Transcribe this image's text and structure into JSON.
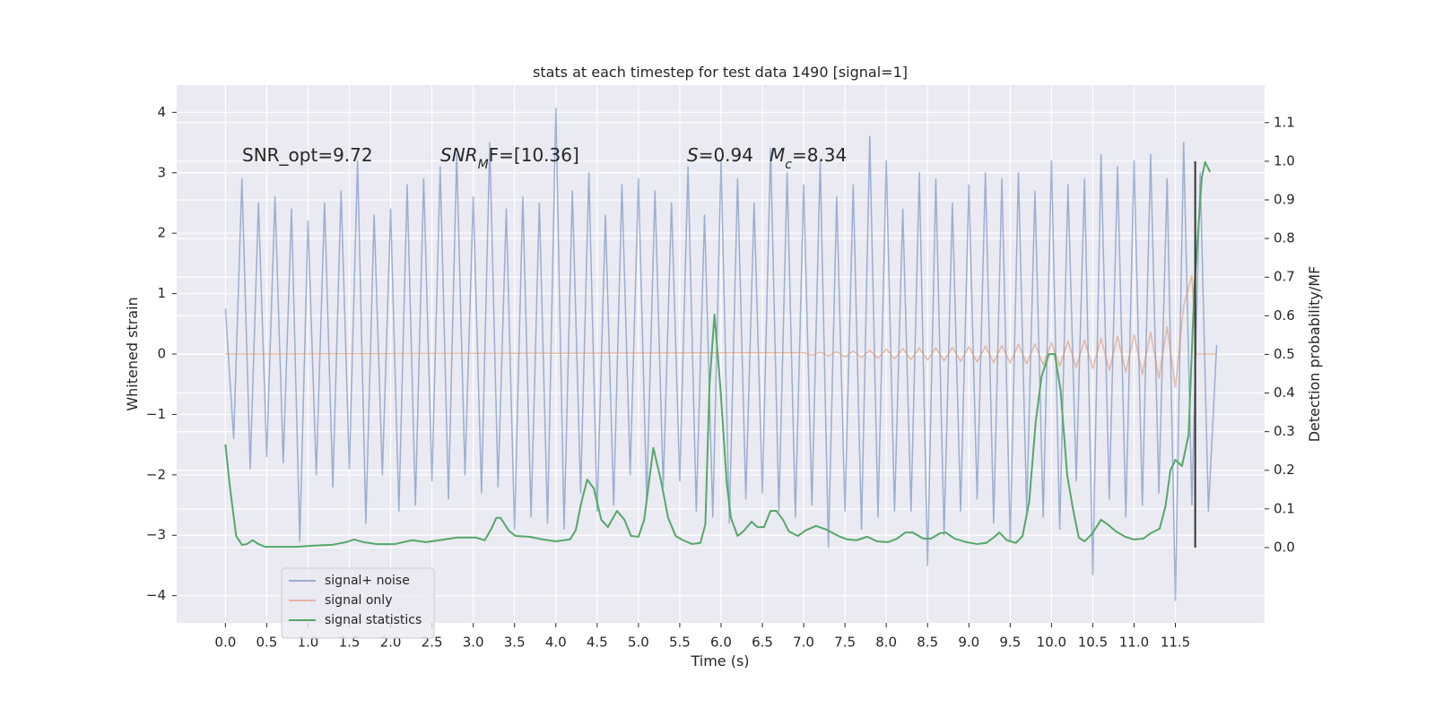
{
  "chart_data": {
    "type": "line",
    "title": "stats at each timestep for test data 1490 [signal=1]",
    "x_label": "Time (s)",
    "y_label": "Whitened strain",
    "y2_label": "Detection probability/MF",
    "xlim": [
      -0.59,
      12.58
    ],
    "ylim": [
      -4.45,
      4.45
    ],
    "y2lim": [
      -0.195,
      1.197
    ],
    "xticks": [
      {
        "value": 0,
        "label": "0.0"
      },
      0.5,
      {
        "value": 1,
        "label": "1.0"
      },
      1.5,
      {
        "value": 2,
        "label": "2.0"
      },
      2.5,
      {
        "value": 3,
        "label": "3.0"
      },
      3.5,
      {
        "value": 4,
        "label": "4.0"
      },
      4.5,
      {
        "value": 5,
        "label": "5.0"
      },
      5.5,
      {
        "value": 6,
        "label": "6.0"
      },
      6.5,
      {
        "value": 7,
        "label": "7.0"
      },
      7.5,
      {
        "value": 8,
        "label": "8.0"
      },
      8.5,
      {
        "value": 9,
        "label": "9.0"
      },
      9.5,
      {
        "value": 10,
        "label": "10.0"
      },
      10.5,
      {
        "value": 11,
        "label": "11.0"
      },
      11.5
    ],
    "yticks": [
      {
        "value": -4,
        "label": "−4"
      },
      {
        "value": -3,
        "label": "−3"
      },
      {
        "value": -2,
        "label": "−2"
      },
      {
        "value": -1,
        "label": "−1"
      },
      0,
      1,
      2,
      3,
      4
    ],
    "y2ticks": [
      {
        "value": 0,
        "label": "0.0"
      },
      0.1,
      0.2,
      0.3,
      0.4,
      0.5,
      0.6,
      0.7,
      0.8,
      0.9,
      {
        "value": 1,
        "label": "1.0"
      },
      1.1
    ],
    "grid": true,
    "legend": "lower left",
    "annotations": [
      {
        "parts": [
          {
            "text": "SNR_opt=9.72"
          }
        ]
      },
      {
        "parts": [
          {
            "text": "SNR",
            "style": "italic"
          },
          {
            "text": "M",
            "style": "italic",
            "sub": true
          },
          {
            "text": "F=[10.36]"
          }
        ]
      },
      {
        "parts": [
          {
            "text": "S",
            "style": "italic"
          },
          {
            "text": "=0.94"
          }
        ]
      },
      {
        "parts": [
          {
            "text": "M",
            "style": "italic"
          },
          {
            "text": "c",
            "style": "italic",
            "sub": true
          },
          {
            "text": "=8.34"
          }
        ]
      }
    ],
    "vline": {
      "x": 11.74,
      "y2": [
        0,
        1.0
      ],
      "color": "#333333"
    },
    "series": [
      {
        "name": "signal+ noise",
        "color": "#4c72b0",
        "opacity": 0.5,
        "x": [
          0.0,
          0.1,
          0.2,
          0.3,
          0.4,
          0.5,
          0.6,
          0.7,
          0.8,
          0.9,
          1.0,
          1.1,
          1.2,
          1.3,
          1.4,
          1.5,
          1.6,
          1.7,
          1.8,
          1.9,
          2.0,
          2.1,
          2.2,
          2.3,
          2.4,
          2.5,
          2.6,
          2.7,
          2.8,
          2.9,
          3.0,
          3.1,
          3.2,
          3.3,
          3.4,
          3.5,
          3.6,
          3.7,
          3.8,
          3.9,
          4.0,
          4.1,
          4.2,
          4.3,
          4.4,
          4.5,
          4.6,
          4.7,
          4.8,
          4.9,
          5.0,
          5.1,
          5.2,
          5.3,
          5.4,
          5.5,
          5.6,
          5.7,
          5.8,
          5.9,
          6.0,
          6.1,
          6.2,
          6.3,
          6.4,
          6.5,
          6.6,
          6.7,
          6.8,
          6.9,
          7.0,
          7.1,
          7.2,
          7.3,
          7.4,
          7.5,
          7.6,
          7.7,
          7.8,
          7.9,
          8.0,
          8.1,
          8.2,
          8.3,
          8.4,
          8.5,
          8.6,
          8.7,
          8.8,
          8.9,
          9.0,
          9.1,
          9.2,
          9.3,
          9.4,
          9.5,
          9.6,
          9.7,
          9.8,
          9.9,
          10.0,
          10.1,
          10.2,
          10.3,
          10.4,
          10.5,
          10.6,
          10.7,
          10.8,
          10.9,
          11.0,
          11.1,
          11.2,
          11.3,
          11.4,
          11.5,
          11.6,
          11.7,
          11.8,
          11.9,
          12.0
        ],
        "values": [
          0.75,
          -1.4,
          2.9,
          -1.9,
          2.5,
          -1.7,
          2.6,
          -1.8,
          2.4,
          -3.1,
          2.2,
          -2.0,
          2.5,
          -2.2,
          2.7,
          -1.9,
          3.2,
          -2.8,
          2.3,
          -2.0,
          2.4,
          -2.6,
          2.8,
          -2.5,
          2.9,
          -2.1,
          3.1,
          -2.4,
          3.3,
          -2.0,
          2.6,
          -2.3,
          3.5,
          -2.2,
          2.4,
          -2.9,
          2.6,
          -2.7,
          2.5,
          -2.8,
          4.07,
          -2.9,
          2.7,
          -2.3,
          3.0,
          -2.6,
          2.3,
          -2.5,
          2.8,
          -2.0,
          2.9,
          -2.4,
          2.7,
          -2.2,
          2.5,
          -2.1,
          3.1,
          -2.6,
          2.3,
          -2.7,
          3.2,
          -2.8,
          2.9,
          -2.4,
          2.5,
          -2.3,
          3.4,
          -2.6,
          3.0,
          -2.7,
          2.8,
          -2.5,
          3.2,
          -3.2,
          2.6,
          -2.6,
          2.8,
          -2.9,
          3.6,
          -2.7,
          3.2,
          -2.6,
          2.4,
          -2.6,
          3.0,
          -3.5,
          2.9,
          -3.0,
          2.5,
          -2.6,
          2.8,
          -2.4,
          3.0,
          -2.8,
          2.9,
          -3.1,
          3.0,
          -2.6,
          2.7,
          -2.7,
          3.2,
          -2.9,
          2.8,
          -2.1,
          2.9,
          -3.65,
          3.3,
          -2.4,
          3.1,
          -2.7,
          3.2,
          -2.5,
          3.3,
          -2.3,
          2.9,
          -4.08,
          3.5,
          -2.5,
          3.0,
          -2.6,
          0.15
        ]
      },
      {
        "name": "signal only",
        "color": "#dd8452",
        "opacity": 0.5,
        "x": [
          0.0,
          7.0,
          7.1,
          7.2,
          7.3,
          7.4,
          7.5,
          7.6,
          7.7,
          7.8,
          7.9,
          8.0,
          8.1,
          8.2,
          8.3,
          8.4,
          8.5,
          8.6,
          8.7,
          8.8,
          8.9,
          9.0,
          9.1,
          9.2,
          9.3,
          9.4,
          9.5,
          9.6,
          9.7,
          9.8,
          9.9,
          10.0,
          10.1,
          10.2,
          10.3,
          10.4,
          10.5,
          10.6,
          10.7,
          10.8,
          10.9,
          11.0,
          11.1,
          11.2,
          11.3,
          11.4,
          11.5,
          11.6,
          11.7,
          11.75,
          12.0
        ],
        "values": [
          0,
          0.02,
          -0.02,
          0.03,
          -0.03,
          0.04,
          -0.05,
          0.05,
          -0.06,
          0.06,
          -0.07,
          0.08,
          -0.08,
          0.09,
          -0.09,
          0.1,
          -0.1,
          0.1,
          -0.11,
          0.11,
          -0.12,
          0.12,
          -0.13,
          0.13,
          -0.14,
          0.14,
          -0.15,
          0.16,
          -0.16,
          0.17,
          -0.18,
          0.19,
          -0.2,
          0.21,
          -0.22,
          0.23,
          -0.24,
          0.26,
          -0.27,
          0.29,
          -0.3,
          0.32,
          -0.34,
          0.36,
          -0.4,
          0.45,
          -0.55,
          0.8,
          1.3,
          0,
          0
        ]
      },
      {
        "name": "signal statistics",
        "color": "#55a868",
        "opacity": 1,
        "axis": "y2",
        "x": [
          0.0,
          0.05,
          0.13,
          0.2,
          0.26,
          0.33,
          0.4,
          0.48,
          0.64,
          0.86,
          1.08,
          1.29,
          1.46,
          1.56,
          1.67,
          1.83,
          2.05,
          2.26,
          2.43,
          2.59,
          2.81,
          3.03,
          3.14,
          3.22,
          3.28,
          3.33,
          3.43,
          3.51,
          3.68,
          3.84,
          4.0,
          4.17,
          4.24,
          4.31,
          4.38,
          4.46,
          4.55,
          4.63,
          4.74,
          4.83,
          4.91,
          5.0,
          5.07,
          5.18,
          5.27,
          5.36,
          5.45,
          5.54,
          5.65,
          5.75,
          5.81,
          5.86,
          5.92,
          5.99,
          6.07,
          6.12,
          6.2,
          6.27,
          6.37,
          6.44,
          6.52,
          6.6,
          6.67,
          6.75,
          6.82,
          6.93,
          7.02,
          7.15,
          7.28,
          7.42,
          7.53,
          7.64,
          7.77,
          7.89,
          8.02,
          8.13,
          8.23,
          8.32,
          8.45,
          8.54,
          8.65,
          8.72,
          8.83,
          8.97,
          9.1,
          9.21,
          9.3,
          9.37,
          9.46,
          9.57,
          9.65,
          9.73,
          9.81,
          9.88,
          9.97,
          10.04,
          10.11,
          10.19,
          10.26,
          10.33,
          10.4,
          10.49,
          10.6,
          10.68,
          10.78,
          10.89,
          11.0,
          11.11,
          11.2,
          11.31,
          11.38,
          11.44,
          11.5,
          11.58,
          11.66,
          11.73,
          11.82,
          11.86,
          11.92
        ],
        "values": [
          0.267,
          0.165,
          0.03,
          0.007,
          0.009,
          0.019,
          0.009,
          0.002,
          0.002,
          0.002,
          0.005,
          0.007,
          0.014,
          0.021,
          0.014,
          0.009,
          0.009,
          0.019,
          0.014,
          0.019,
          0.026,
          0.026,
          0.019,
          0.049,
          0.077,
          0.077,
          0.044,
          0.03,
          0.028,
          0.021,
          0.016,
          0.021,
          0.044,
          0.118,
          0.176,
          0.153,
          0.072,
          0.053,
          0.095,
          0.072,
          0.03,
          0.028,
          0.072,
          0.258,
          0.176,
          0.077,
          0.03,
          0.019,
          0.009,
          0.012,
          0.06,
          0.42,
          0.603,
          0.42,
          0.165,
          0.077,
          0.03,
          0.042,
          0.067,
          0.053,
          0.053,
          0.095,
          0.095,
          0.072,
          0.042,
          0.03,
          0.044,
          0.056,
          0.046,
          0.03,
          0.021,
          0.019,
          0.028,
          0.016,
          0.014,
          0.023,
          0.039,
          0.039,
          0.023,
          0.023,
          0.037,
          0.039,
          0.023,
          0.014,
          0.009,
          0.012,
          0.026,
          0.039,
          0.019,
          0.012,
          0.03,
          0.118,
          0.327,
          0.443,
          0.501,
          0.501,
          0.408,
          0.188,
          0.1,
          0.026,
          0.016,
          0.035,
          0.072,
          0.06,
          0.042,
          0.028,
          0.021,
          0.023,
          0.037,
          0.049,
          0.107,
          0.2,
          0.227,
          0.211,
          0.292,
          0.675,
          0.958,
          0.998,
          0.972
        ]
      }
    ]
  }
}
